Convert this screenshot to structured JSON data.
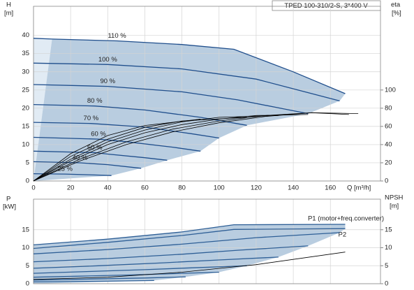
{
  "chart_data": [
    {
      "type": "line",
      "title": "TPED 100-310/2-S, 3*400 V",
      "x_label": "Q [m³/h]",
      "y_label": "H",
      "y_unit": "[m]",
      "y2_label": "eta",
      "y2_unit": "[%]",
      "xlim": [
        0,
        187
      ],
      "xticks": [
        0,
        20,
        40,
        60,
        80,
        100,
        120,
        140,
        160
      ],
      "ylim": [
        0,
        48
      ],
      "yticks": [
        0,
        5,
        10,
        15,
        20,
        25,
        30,
        35,
        40
      ],
      "y2lim": [
        0,
        192
      ],
      "y2ticks": [
        0,
        20,
        40,
        60,
        80,
        100
      ],
      "grid": true,
      "region_color": "#b9cde0",
      "region_light_color": "#e1ebf4",
      "series": [
        {
          "label": "110 %",
          "color": "#1f4e8c",
          "x": [
            0,
            10,
            45,
            80,
            108,
            140,
            168
          ],
          "values": [
            39.2,
            39,
            38.5,
            37.5,
            36.2,
            30,
            24
          ]
        },
        {
          "label": "100 %",
          "color": "#1f4e8c",
          "x": [
            0,
            40,
            80,
            120,
            150,
            165
          ],
          "values": [
            32.4,
            32,
            30.8,
            28,
            24,
            22
          ]
        },
        {
          "label": "90 %",
          "color": "#1f4e8c",
          "x": [
            0,
            40,
            80,
            110,
            135,
            148
          ],
          "values": [
            26.5,
            26,
            24.5,
            22.3,
            19.8,
            18.5
          ]
        },
        {
          "label": "80 %",
          "color": "#1f4e8c",
          "x": [
            0,
            33,
            60,
            90,
            115
          ],
          "values": [
            21,
            20.6,
            19.5,
            17.5,
            15.3
          ]
        },
        {
          "label": "70 %",
          "color": "#1f4e8c",
          "x": [
            0,
            31,
            60,
            85,
            100
          ],
          "values": [
            16.1,
            15.8,
            14.8,
            13,
            11.8
          ]
        },
        {
          "label": "60 %",
          "color": "#1f4e8c",
          "x": [
            0,
            35,
            50,
            75,
            90
          ],
          "values": [
            12,
            11.5,
            10.8,
            9.3,
            8.2
          ]
        },
        {
          "label": "50 %",
          "color": "#1f4e8c",
          "x": [
            0,
            33,
            40,
            60,
            72
          ],
          "values": [
            8.2,
            7.8,
            7.4,
            6.4,
            5.7
          ]
        },
        {
          "label": "40 %",
          "color": "#1f4e8c",
          "x": [
            0,
            25,
            40,
            58
          ],
          "values": [
            5.3,
            5,
            4.5,
            3.5
          ]
        },
        {
          "label": "25 %",
          "color": "#1f4e8c",
          "x": [
            0,
            17,
            30,
            42
          ],
          "values": [
            2,
            1.9,
            1.7,
            1.5
          ]
        },
        {
          "axis": "y2",
          "color": "#000000",
          "x": [
            0,
            25,
            50,
            75,
            100,
            125,
            150,
            175
          ],
          "values": [
            0,
            22,
            40,
            54,
            64,
            71,
            75,
            74
          ]
        },
        {
          "axis": "y2",
          "color": "#000000",
          "x": [
            0,
            25,
            50,
            75,
            100,
            125,
            150,
            170
          ],
          "values": [
            0,
            24,
            43,
            57,
            66,
            72,
            75,
            73
          ]
        },
        {
          "axis": "y2",
          "color": "#000000",
          "x": [
            0,
            20,
            40,
            60,
            80,
            100,
            120,
            148
          ],
          "values": [
            0,
            22,
            40,
            53,
            62,
            68,
            72,
            73
          ]
        },
        {
          "axis": "y2",
          "color": "#000000",
          "x": [
            0,
            20,
            40,
            60,
            80,
            100,
            132
          ],
          "values": [
            0,
            24,
            43,
            56,
            65,
            70,
            72
          ]
        },
        {
          "axis": "y2",
          "color": "#000000",
          "x": [
            0,
            20,
            40,
            60,
            80,
            115
          ],
          "values": [
            0,
            27,
            46,
            59,
            66,
            70
          ]
        },
        {
          "axis": "y2",
          "color": "#000000",
          "x": [
            0,
            20,
            40,
            60,
            90
          ],
          "values": [
            0,
            30,
            50,
            61,
            68
          ]
        }
      ]
    },
    {
      "type": "line",
      "y_label": "P",
      "y_unit": "[kW]",
      "y2_label": "NPSH",
      "y2_unit": "[m]",
      "xlim": [
        0,
        187
      ],
      "ylim": [
        0,
        23.5
      ],
      "yticks": [
        0,
        5,
        10,
        15
      ],
      "y2lim": [
        0,
        23.5
      ],
      "y2ticks": [
        0,
        5,
        10,
        15
      ],
      "grid": true,
      "region_color": "#b9cde0",
      "series": [
        {
          "name": "P1 (motor+freq.converter)",
          "color": "#2e5f96",
          "x": [
            0,
            40,
            80,
            108,
            168
          ],
          "values": [
            10.8,
            12.4,
            14.4,
            16.4,
            16.5
          ]
        },
        {
          "name": "P2",
          "color": "#2e5f96",
          "x": [
            0,
            40,
            80,
            108,
            168
          ],
          "values": [
            9.8,
            11.5,
            13.4,
            15.1,
            15.3
          ]
        },
        {
          "color": "#2e5f96",
          "x": [
            0,
            40,
            80,
            120,
            165
          ],
          "values": [
            8.3,
            9.5,
            11,
            12.8,
            14.2
          ]
        },
        {
          "color": "#2e5f96",
          "x": [
            0,
            40,
            80,
            110,
            148
          ],
          "values": [
            6.1,
            7,
            8.2,
            9.3,
            10.5
          ]
        },
        {
          "color": "#2e5f96",
          "x": [
            0,
            35,
            70,
            100,
            132
          ],
          "values": [
            4.3,
            5,
            5.8,
            6.6,
            7.4
          ]
        },
        {
          "color": "#2e5f96",
          "x": [
            0,
            30,
            60,
            85,
            115
          ],
          "values": [
            2.9,
            3.4,
            3.9,
            4.4,
            5
          ]
        },
        {
          "color": "#2e5f96",
          "x": [
            0,
            25,
            50,
            75,
            100
          ],
          "values": [
            1.8,
            2.1,
            2.4,
            2.8,
            3.2
          ]
        },
        {
          "color": "#2e5f96",
          "x": [
            0,
            20,
            40,
            60,
            82
          ],
          "values": [
            1,
            1.2,
            1.4,
            1.6,
            1.9
          ]
        },
        {
          "color": "#2e5f96",
          "x": [
            0,
            20,
            40,
            65
          ],
          "values": [
            0.5,
            0.6,
            0.7,
            0.9
          ]
        },
        {
          "axis": "y2",
          "color": "#000000",
          "x": [
            0,
            40,
            80,
            120,
            168
          ],
          "values": [
            1.2,
            1.8,
            3.2,
            5.3,
            8.8
          ]
        }
      ]
    }
  ]
}
